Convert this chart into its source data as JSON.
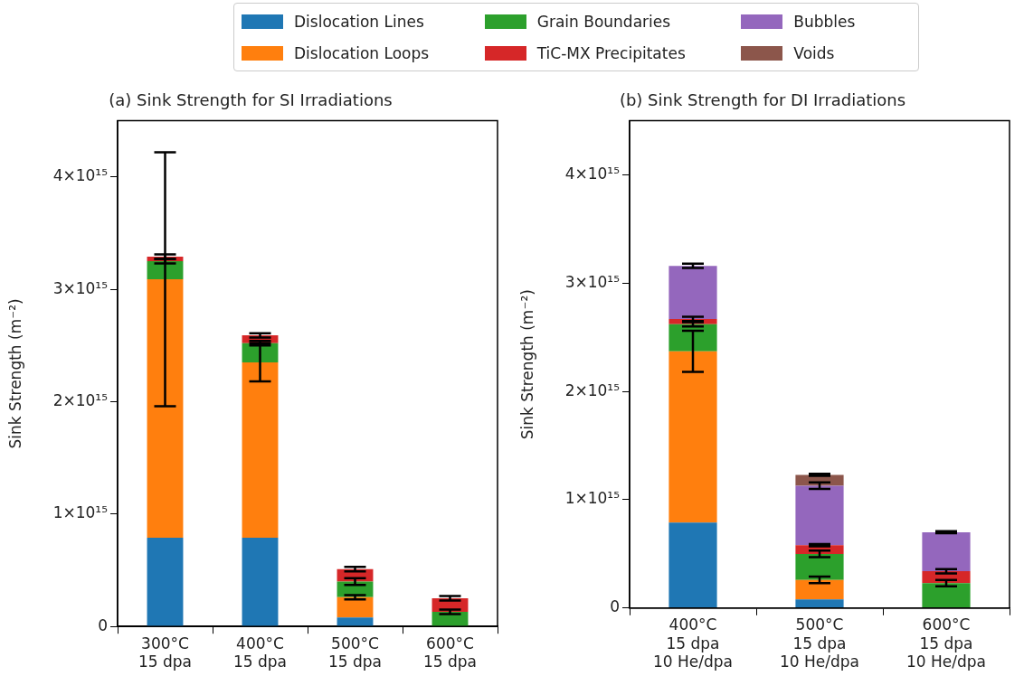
{
  "chart_data": [
    {
      "type": "bar",
      "stacked": true,
      "title": "(a) Sink Strength for SI Irradiations",
      "ylabel": "Sink Strength (m⁻²)",
      "categories": [
        "300°C\n15 dpa",
        "400°C\n15 dpa",
        "500°C\n15 dpa",
        "600°C\n15 dpa"
      ],
      "ylim": [
        0,
        4500000000000000.0
      ],
      "yticks": [
        0,
        {
          "value": 1000000000000000.0,
          "label": "1×10¹⁵"
        },
        {
          "value": 2000000000000000.0,
          "label": "2×10¹⁵"
        },
        {
          "value": 3000000000000000.0,
          "label": "3×10¹⁵"
        },
        {
          "value": 4000000000000000.0,
          "label": "4×10¹⁵"
        }
      ],
      "grid": false,
      "series": [
        {
          "color": "#1f77b4",
          "values": [
            790000000000000.0,
            790000000000000.0,
            80000000000000.0,
            0
          ]
        },
        {
          "color": "#ff7f0e",
          "values": [
            2300000000000000.0,
            1560000000000000.0,
            180000000000000.0,
            0
          ],
          "errors": [
            1130000000000000.0,
            170000000000000.0,
            20000000000000.0,
            null
          ]
        },
        {
          "color": "#2ca02c",
          "values": [
            160000000000000.0,
            170000000000000.0,
            140000000000000.0,
            130000000000000.0
          ],
          "errors": [
            20000000000000.0,
            20000000000000.0,
            30000000000000.0,
            20000000000000.0
          ]
        },
        {
          "color": "#d62728",
          "values": [
            40000000000000.0,
            70000000000000.0,
            110000000000000.0,
            120000000000000.0
          ],
          "errors": [
            20000000000000.0,
            20000000000000.0,
            20000000000000.0,
            20000000000000.0
          ]
        }
      ]
    },
    {
      "type": "bar",
      "stacked": true,
      "title": "(b) Sink Strength for DI Irradiations",
      "ylabel": "Sink Strength (m⁻²)",
      "categories": [
        "400°C\n15 dpa\n10 He/dpa",
        "500°C\n15 dpa\n10 He/dpa",
        "600°C\n15 dpa\n10 He/dpa"
      ],
      "ylim": [
        0,
        4500000000000000.0
      ],
      "yticks": [
        0,
        {
          "value": 1000000000000000.0,
          "label": "1×10¹⁵"
        },
        {
          "value": 2000000000000000.0,
          "label": "2×10¹⁵"
        },
        {
          "value": 3000000000000000.0,
          "label": "3×10¹⁵"
        },
        {
          "value": 4000000000000000.0,
          "label": "4×10¹⁵"
        }
      ],
      "grid": false,
      "legend": "top",
      "series": [
        {
          "name": "Dislocation Lines",
          "color": "#1f77b4",
          "values": [
            790000000000000.0,
            80000000000000.0,
            0
          ]
        },
        {
          "name": "Dislocation Loops",
          "color": "#ff7f0e",
          "values": [
            1580000000000000.0,
            180000000000000.0,
            0
          ],
          "errors": [
            190000000000000.0,
            30000000000000.0,
            null
          ]
        },
        {
          "name": "Grain Boundaries",
          "color": "#2ca02c",
          "values": [
            250000000000000.0,
            240000000000000.0,
            230000000000000.0
          ],
          "errors": [
            20000000000000.0,
            30000000000000.0,
            30000000000000.0
          ]
        },
        {
          "name": "TiC-MX Precipitates",
          "color": "#d62728",
          "values": [
            50000000000000.0,
            80000000000000.0,
            110000000000000.0
          ],
          "errors": [
            20000000000000.0,
            10000000000000.0,
            20000000000000.0
          ]
        },
        {
          "name": "Bubbles",
          "color": "#9467bd",
          "values": [
            490000000000000.0,
            550000000000000.0,
            360000000000000.0
          ],
          "errors": [
            20000000000000.0,
            30000000000000.0,
            10000000000000.0
          ]
        },
        {
          "name": "Voids",
          "color": "#8c564b",
          "values": [
            0,
            100000000000000.0,
            0
          ],
          "errors": [
            null,
            10000000000000.0,
            null
          ]
        }
      ]
    }
  ]
}
